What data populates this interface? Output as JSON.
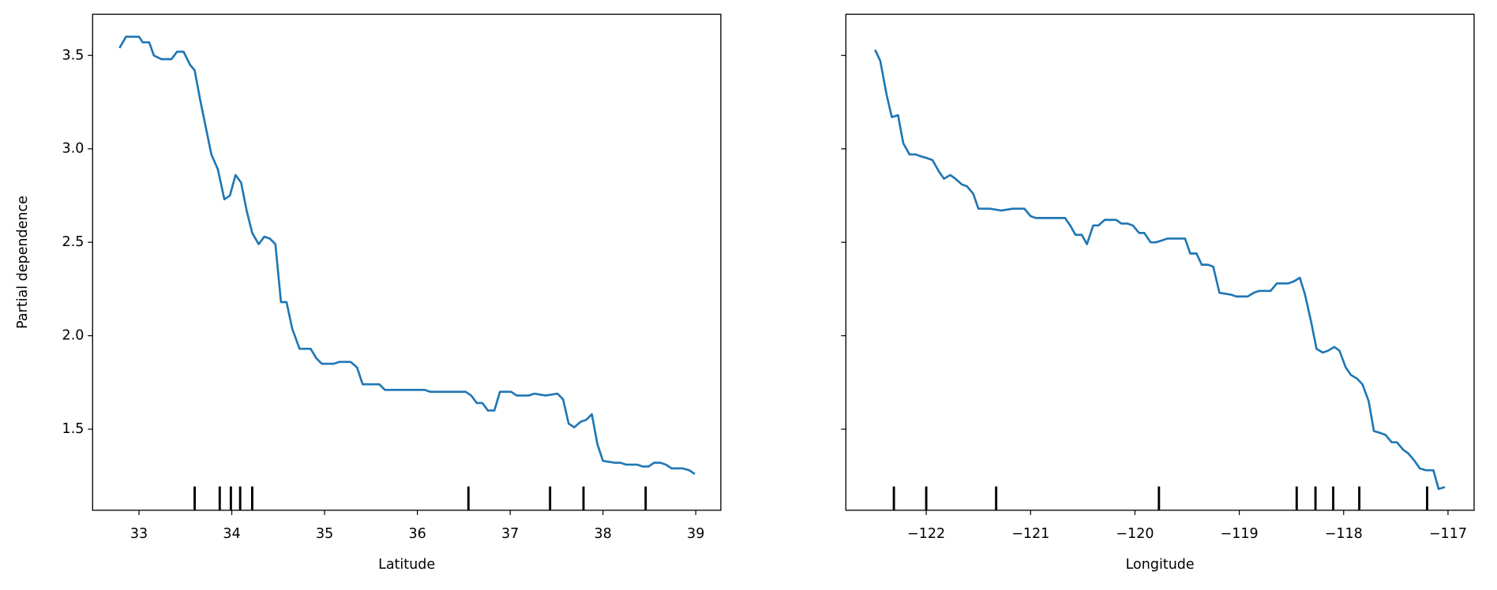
{
  "chart_data": [
    {
      "type": "line",
      "xlabel": "Latitude",
      "ylabel": "Partial dependence",
      "color": "#1f77b4",
      "x": [
        32.79,
        32.86,
        33.0,
        33.04,
        33.11,
        33.16,
        33.24,
        33.35,
        33.41,
        33.48,
        33.55,
        33.6,
        33.66,
        33.78,
        33.85,
        33.92,
        33.98,
        34.04,
        34.1,
        34.16,
        34.22,
        34.29,
        34.35,
        34.41,
        34.47,
        34.53,
        34.59,
        34.65,
        34.73,
        34.85,
        34.91,
        34.97,
        35.1,
        35.16,
        35.28,
        35.35,
        35.41,
        35.59,
        35.65,
        36.02,
        36.08,
        36.14,
        36.52,
        36.58,
        36.64,
        36.7,
        36.76,
        36.83,
        36.89,
        37.01,
        37.07,
        37.2,
        37.26,
        37.38,
        37.51,
        37.57,
        37.63,
        37.69,
        37.76,
        37.82,
        37.88,
        37.94,
        38.0,
        38.13,
        38.19,
        38.25,
        38.37,
        38.43,
        38.49,
        38.55,
        38.62,
        38.68,
        38.74,
        38.86,
        38.93,
        38.99
      ],
      "values": [
        3.54,
        3.6,
        3.6,
        3.57,
        3.57,
        3.5,
        3.48,
        3.48,
        3.52,
        3.52,
        3.45,
        3.42,
        3.26,
        2.97,
        2.89,
        2.73,
        2.75,
        2.86,
        2.82,
        2.67,
        2.55,
        2.49,
        2.53,
        2.52,
        2.49,
        2.18,
        2.18,
        2.04,
        1.93,
        1.93,
        1.88,
        1.85,
        1.85,
        1.86,
        1.86,
        1.83,
        1.74,
        1.74,
        1.71,
        1.71,
        1.71,
        1.7,
        1.7,
        1.68,
        1.64,
        1.64,
        1.6,
        1.6,
        1.7,
        1.7,
        1.68,
        1.68,
        1.69,
        1.68,
        1.69,
        1.66,
        1.53,
        1.51,
        1.54,
        1.55,
        1.58,
        1.42,
        1.33,
        1.32,
        1.32,
        1.31,
        1.31,
        1.3,
        1.3,
        1.32,
        1.32,
        1.31,
        1.29,
        1.29,
        1.28,
        1.26
      ],
      "deciles": [
        33.6,
        33.87,
        33.99,
        34.09,
        34.22,
        36.55,
        37.43,
        37.79,
        38.46
      ],
      "xlim": [
        32.5,
        39.27
      ],
      "ylim": [
        1.066,
        3.72
      ],
      "xticks": [
        33,
        34,
        35,
        36,
        37,
        38,
        39
      ],
      "yticks": [
        1.5,
        {
          "value": 2.0,
          "label": "2.0"
        },
        2.5,
        {
          "value": 3.0,
          "label": "3.0"
        },
        3.5
      ]
    },
    {
      "type": "line",
      "xlabel": "Longitude",
      "color": "#1f77b4",
      "x": [
        -122.49,
        -122.44,
        -122.38,
        -122.33,
        -122.27,
        -122.22,
        -122.16,
        -122.1,
        -122.05,
        -121.99,
        -121.94,
        -121.88,
        -121.83,
        -121.77,
        -121.72,
        -121.66,
        -121.61,
        -121.55,
        -121.5,
        -121.39,
        -121.28,
        -121.17,
        -121.06,
        -121.0,
        -120.95,
        -120.84,
        -120.67,
        -120.62,
        -120.57,
        -120.51,
        -120.46,
        -120.4,
        -120.35,
        -120.29,
        -120.18,
        -120.13,
        -120.07,
        -120.02,
        -119.96,
        -119.91,
        -119.85,
        -119.8,
        -119.74,
        -119.69,
        -119.63,
        -119.52,
        -119.47,
        -119.41,
        -119.36,
        -119.3,
        -119.25,
        -119.19,
        -119.08,
        -119.03,
        -118.92,
        -118.86,
        -118.81,
        -118.7,
        -118.64,
        -118.59,
        -118.53,
        -118.48,
        -118.42,
        -118.37,
        -118.31,
        -118.26,
        -118.2,
        -118.15,
        -118.09,
        -118.04,
        -117.98,
        -117.93,
        -117.87,
        -117.82,
        -117.76,
        -117.71,
        -117.65,
        -117.6,
        -117.54,
        -117.49,
        -117.43,
        -117.38,
        -117.32,
        -117.27,
        -117.21,
        -117.14,
        -117.09,
        -117.03
      ],
      "values": [
        3.53,
        3.47,
        3.29,
        3.17,
        3.18,
        3.03,
        2.97,
        2.97,
        2.96,
        2.95,
        2.94,
        2.88,
        2.84,
        2.86,
        2.84,
        2.81,
        2.8,
        2.76,
        2.68,
        2.68,
        2.67,
        2.68,
        2.68,
        2.64,
        2.63,
        2.63,
        2.63,
        2.59,
        2.54,
        2.54,
        2.49,
        2.59,
        2.59,
        2.62,
        2.62,
        2.6,
        2.6,
        2.59,
        2.55,
        2.55,
        2.5,
        2.5,
        2.51,
        2.52,
        2.52,
        2.52,
        2.44,
        2.44,
        2.38,
        2.38,
        2.37,
        2.23,
        2.22,
        2.21,
        2.21,
        2.23,
        2.24,
        2.24,
        2.28,
        2.28,
        2.28,
        2.29,
        2.31,
        2.22,
        2.07,
        1.93,
        1.91,
        1.92,
        1.94,
        1.92,
        1.83,
        1.79,
        1.77,
        1.74,
        1.65,
        1.49,
        1.48,
        1.47,
        1.43,
        1.43,
        1.39,
        1.37,
        1.33,
        1.29,
        1.28,
        1.28,
        1.18,
        1.19
      ],
      "deciles": [
        -122.31,
        -122.0,
        -121.33,
        -119.77,
        -118.45,
        -118.27,
        -118.1,
        -117.85,
        -117.2
      ],
      "xlim": [
        -122.77,
        -116.75
      ],
      "xticks": [
        {
          "value": -122,
          "label": "−122"
        },
        {
          "value": -121,
          "label": "−121"
        },
        {
          "value": -120,
          "label": "−120"
        },
        {
          "value": -119,
          "label": "−119"
        },
        {
          "value": -118,
          "label": "−118"
        },
        {
          "value": -117,
          "label": "−117"
        }
      ]
    }
  ]
}
